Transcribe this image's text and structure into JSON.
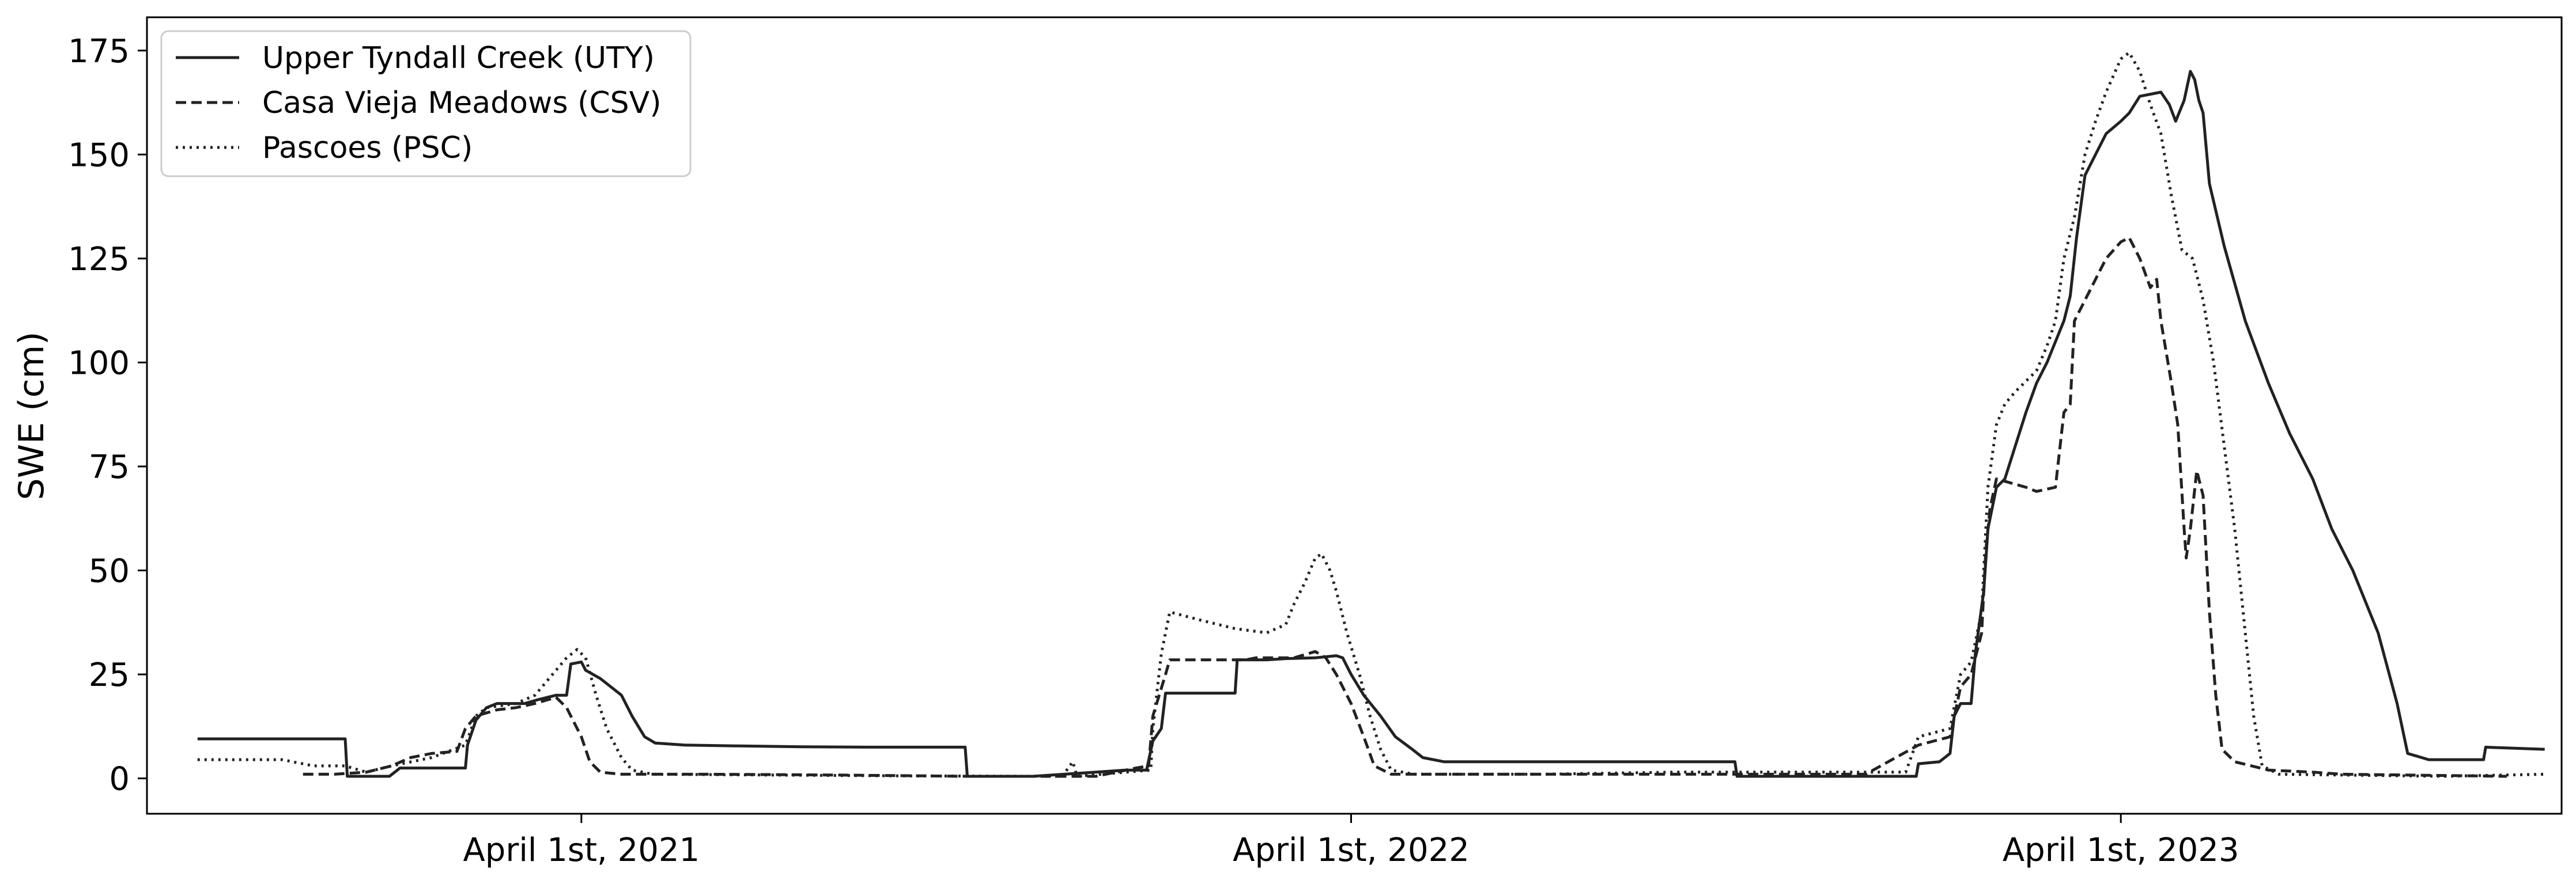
{
  "chart_data": {
    "type": "line",
    "title": "",
    "xlabel": "",
    "ylabel": "SWE (cm)",
    "xlim": [
      "2020-09-07",
      "2023-10-27"
    ],
    "ylim": [
      -8.5,
      183
    ],
    "yticks": [
      0,
      25,
      50,
      75,
      100,
      125,
      150,
      175
    ],
    "xticks": [
      {
        "date": "2021-04-01",
        "label": "April 1st, 2021"
      },
      {
        "date": "2022-04-01",
        "label": "April 1st, 2022"
      },
      {
        "date": "2023-04-01",
        "label": "April 1st, 2023"
      }
    ],
    "grid": false,
    "legend": "top-left",
    "series": [
      {
        "name": "Upper Tyndall Creek (UTY)",
        "style": "solid",
        "color": "#222222",
        "points": [
          [
            "2020-10-01",
            9.5
          ],
          [
            "2020-12-10",
            9.5
          ],
          [
            "2020-12-11",
            0.5
          ],
          [
            "2020-12-31",
            0.5
          ],
          [
            "2021-01-05",
            2.5
          ],
          [
            "2021-01-15",
            2.5
          ],
          [
            "2021-01-16",
            2.5
          ],
          [
            "2021-02-05",
            2.5
          ],
          [
            "2021-02-06",
            8
          ],
          [
            "2021-02-10",
            14
          ],
          [
            "2021-02-15",
            17
          ],
          [
            "2021-02-20",
            18
          ],
          [
            "2021-03-05",
            18
          ],
          [
            "2021-03-12",
            19
          ],
          [
            "2021-03-20",
            20
          ],
          [
            "2021-03-25",
            20
          ],
          [
            "2021-03-27",
            27.5
          ],
          [
            "2021-04-01",
            28
          ],
          [
            "2021-04-03",
            26
          ],
          [
            "2021-04-10",
            24
          ],
          [
            "2021-04-20",
            20
          ],
          [
            "2021-04-25",
            15
          ],
          [
            "2021-05-01",
            10
          ],
          [
            "2021-05-06",
            8.5
          ],
          [
            "2021-05-20",
            8
          ],
          [
            "2021-06-15",
            7.8
          ],
          [
            "2021-07-15",
            7.6
          ],
          [
            "2021-08-15",
            7.5
          ],
          [
            "2021-09-30",
            7.5
          ],
          [
            "2021-10-01",
            0.5
          ],
          [
            "2021-11-01",
            0.5
          ],
          [
            "2021-12-01",
            1.5
          ],
          [
            "2021-12-15",
            2
          ],
          [
            "2021-12-25",
            2
          ],
          [
            "2021-12-28",
            9
          ],
          [
            "2022-01-01",
            12
          ],
          [
            "2022-01-03",
            20.5
          ],
          [
            "2022-01-20",
            20.5
          ],
          [
            "2022-02-05",
            20.5
          ],
          [
            "2022-02-06",
            28.5
          ],
          [
            "2022-02-20",
            28.5
          ],
          [
            "2022-03-01",
            28.8
          ],
          [
            "2022-03-15",
            29
          ],
          [
            "2022-03-25",
            29.5
          ],
          [
            "2022-03-28",
            29
          ],
          [
            "2022-04-01",
            25
          ],
          [
            "2022-04-07",
            20
          ],
          [
            "2022-04-15",
            15
          ],
          [
            "2022-04-22",
            10
          ],
          [
            "2022-04-30",
            7
          ],
          [
            "2022-05-05",
            5
          ],
          [
            "2022-05-15",
            4
          ],
          [
            "2022-06-15",
            4
          ],
          [
            "2022-08-15",
            4
          ],
          [
            "2022-09-30",
            4
          ],
          [
            "2022-10-01",
            0.5
          ],
          [
            "2022-12-25",
            0.5
          ],
          [
            "2022-12-26",
            3.5
          ],
          [
            "2023-01-05",
            4
          ],
          [
            "2023-01-10",
            6
          ],
          [
            "2023-01-12",
            15
          ],
          [
            "2023-01-15",
            18
          ],
          [
            "2023-01-20",
            18
          ],
          [
            "2023-01-22",
            30
          ],
          [
            "2023-01-26",
            45
          ],
          [
            "2023-01-28",
            60
          ],
          [
            "2023-02-01",
            70
          ],
          [
            "2023-02-05",
            72
          ],
          [
            "2023-02-10",
            80
          ],
          [
            "2023-02-15",
            88
          ],
          [
            "2023-02-20",
            95
          ],
          [
            "2023-02-25",
            100
          ],
          [
            "2023-03-01",
            105
          ],
          [
            "2023-03-05",
            110
          ],
          [
            "2023-03-08",
            116
          ],
          [
            "2023-03-11",
            130
          ],
          [
            "2023-03-15",
            145
          ],
          [
            "2023-03-20",
            150
          ],
          [
            "2023-03-25",
            155
          ],
          [
            "2023-04-01",
            158
          ],
          [
            "2023-04-05",
            160
          ],
          [
            "2023-04-10",
            164
          ],
          [
            "2023-04-20",
            165
          ],
          [
            "2023-04-24",
            162
          ],
          [
            "2023-04-27",
            158
          ],
          [
            "2023-05-01",
            163
          ],
          [
            "2023-05-04",
            170
          ],
          [
            "2023-05-06",
            168
          ],
          [
            "2023-05-08",
            163
          ],
          [
            "2023-05-10",
            160
          ],
          [
            "2023-05-13",
            143
          ],
          [
            "2023-05-20",
            128
          ],
          [
            "2023-05-30",
            110
          ],
          [
            "2023-06-10",
            95
          ],
          [
            "2023-06-20",
            83
          ],
          [
            "2023-07-01",
            72
          ],
          [
            "2023-07-10",
            60
          ],
          [
            "2023-07-20",
            50
          ],
          [
            "2023-08-01",
            35
          ],
          [
            "2023-08-10",
            18
          ],
          [
            "2023-08-15",
            6
          ],
          [
            "2023-08-25",
            4.5
          ],
          [
            "2023-09-20",
            4.5
          ],
          [
            "2023-09-21",
            7.5
          ],
          [
            "2023-10-19",
            7
          ]
        ]
      },
      {
        "name": "Casa Vieja Meadows (CSV)",
        "style": "dashed",
        "color": "#222222",
        "points": [
          [
            "2020-11-20",
            1
          ],
          [
            "2020-12-05",
            1
          ],
          [
            "2020-12-20",
            1.5
          ],
          [
            "2021-01-01",
            3
          ],
          [
            "2021-01-10",
            5
          ],
          [
            "2021-01-20",
            6
          ],
          [
            "2021-02-01",
            6.5
          ],
          [
            "2021-02-05",
            12
          ],
          [
            "2021-02-10",
            15
          ],
          [
            "2021-02-20",
            16.5
          ],
          [
            "2021-03-01",
            17
          ],
          [
            "2021-03-10",
            18
          ],
          [
            "2021-03-20",
            19.5
          ],
          [
            "2021-03-25",
            17
          ],
          [
            "2021-04-01",
            10
          ],
          [
            "2021-04-05",
            4
          ],
          [
            "2021-04-10",
            1.5
          ],
          [
            "2021-04-20",
            1
          ],
          [
            "2021-06-01",
            1
          ],
          [
            "2021-08-01",
            0.8
          ],
          [
            "2021-10-01",
            0.5
          ],
          [
            "2021-12-01",
            0.5
          ],
          [
            "2021-12-20",
            2.5
          ],
          [
            "2021-12-26",
            3
          ],
          [
            "2021-12-28",
            15
          ],
          [
            "2022-01-03",
            25
          ],
          [
            "2022-01-05",
            28.5
          ],
          [
            "2022-02-10",
            28.5
          ],
          [
            "2022-02-15",
            29
          ],
          [
            "2022-03-05",
            29
          ],
          [
            "2022-03-15",
            30.5
          ],
          [
            "2022-03-20",
            29
          ],
          [
            "2022-03-25",
            25
          ],
          [
            "2022-04-01",
            18
          ],
          [
            "2022-04-07",
            10
          ],
          [
            "2022-04-12",
            3
          ],
          [
            "2022-04-20",
            1
          ],
          [
            "2022-06-01",
            1
          ],
          [
            "2022-09-01",
            1
          ],
          [
            "2022-12-01",
            1
          ],
          [
            "2022-12-26",
            8
          ],
          [
            "2023-01-10",
            10
          ],
          [
            "2023-01-15",
            22
          ],
          [
            "2023-01-20",
            25
          ],
          [
            "2023-01-25",
            35
          ],
          [
            "2023-01-27",
            55
          ],
          [
            "2023-01-29",
            65
          ],
          [
            "2023-02-01",
            72
          ],
          [
            "2023-02-15",
            70
          ],
          [
            "2023-02-20",
            69
          ],
          [
            "2023-03-01",
            70
          ],
          [
            "2023-03-05",
            88
          ],
          [
            "2023-03-08",
            90
          ],
          [
            "2023-03-10",
            110
          ],
          [
            "2023-03-15",
            115
          ],
          [
            "2023-03-20",
            120
          ],
          [
            "2023-03-25",
            125
          ],
          [
            "2023-04-01",
            129
          ],
          [
            "2023-04-05",
            130
          ],
          [
            "2023-04-10",
            125
          ],
          [
            "2023-04-15",
            118
          ],
          [
            "2023-04-18",
            120
          ],
          [
            "2023-04-20",
            110
          ],
          [
            "2023-04-25",
            95
          ],
          [
            "2023-04-28",
            85
          ],
          [
            "2023-05-01",
            60
          ],
          [
            "2023-05-02",
            53
          ],
          [
            "2023-05-04",
            60
          ],
          [
            "2023-05-07",
            74
          ],
          [
            "2023-05-10",
            68
          ],
          [
            "2023-05-13",
            40
          ],
          [
            "2023-05-16",
            20
          ],
          [
            "2023-05-19",
            7
          ],
          [
            "2023-05-25",
            4
          ],
          [
            "2023-06-10",
            2
          ],
          [
            "2023-07-01",
            1.5
          ],
          [
            "2023-07-15",
            1
          ],
          [
            "2023-10-01",
            0.5
          ]
        ]
      },
      {
        "name": "Pascoes (PSC)",
        "style": "dotted",
        "color": "#222222",
        "points": [
          [
            "2020-10-01",
            4.5
          ],
          [
            "2020-11-10",
            4.5
          ],
          [
            "2020-11-25",
            3
          ],
          [
            "2020-12-10",
            3
          ],
          [
            "2020-12-20",
            1.5
          ],
          [
            "2021-01-01",
            3
          ],
          [
            "2021-01-20",
            5
          ],
          [
            "2021-02-05",
            8
          ],
          [
            "2021-02-10",
            15
          ],
          [
            "2021-02-15",
            17
          ],
          [
            "2021-03-01",
            18
          ],
          [
            "2021-03-10",
            20
          ],
          [
            "2021-03-20",
            26
          ],
          [
            "2021-03-25",
            29
          ],
          [
            "2021-03-30",
            31
          ],
          [
            "2021-04-03",
            29
          ],
          [
            "2021-04-08",
            20
          ],
          [
            "2021-04-13",
            12
          ],
          [
            "2021-04-20",
            5
          ],
          [
            "2021-04-25",
            2
          ],
          [
            "2021-05-05",
            1
          ],
          [
            "2021-07-01",
            0.8
          ],
          [
            "2021-09-01",
            0.6
          ],
          [
            "2021-11-15",
            0.5
          ],
          [
            "2021-11-20",
            4
          ],
          [
            "2021-11-22",
            0.5
          ],
          [
            "2021-12-27",
            2
          ],
          [
            "2021-12-28",
            12
          ],
          [
            "2022-01-01",
            30
          ],
          [
            "2022-01-05",
            40
          ],
          [
            "2022-01-20",
            38
          ],
          [
            "2022-02-05",
            36
          ],
          [
            "2022-02-20",
            35
          ],
          [
            "2022-03-01",
            37
          ],
          [
            "2022-03-05",
            42
          ],
          [
            "2022-03-10",
            47
          ],
          [
            "2022-03-15",
            53
          ],
          [
            "2022-03-18",
            54
          ],
          [
            "2022-03-22",
            50
          ],
          [
            "2022-03-25",
            45
          ],
          [
            "2022-03-30",
            35
          ],
          [
            "2022-04-05",
            25
          ],
          [
            "2022-04-10",
            15
          ],
          [
            "2022-04-15",
            7
          ],
          [
            "2022-04-20",
            2
          ],
          [
            "2022-05-01",
            1
          ],
          [
            "2022-07-01",
            1
          ],
          [
            "2022-09-01",
            1.5
          ],
          [
            "2022-12-20",
            1.5
          ],
          [
            "2022-12-26",
            10
          ],
          [
            "2023-01-10",
            12
          ],
          [
            "2023-01-15",
            25
          ],
          [
            "2023-01-20",
            28
          ],
          [
            "2023-01-25",
            40
          ],
          [
            "2023-01-28",
            70
          ],
          [
            "2023-02-01",
            85
          ],
          [
            "2023-02-05",
            90
          ],
          [
            "2023-02-10",
            93
          ],
          [
            "2023-02-20",
            98
          ],
          [
            "2023-02-25",
            104
          ],
          [
            "2023-03-01",
            110
          ],
          [
            "2023-03-05",
            125
          ],
          [
            "2023-03-10",
            135
          ],
          [
            "2023-03-15",
            150
          ],
          [
            "2023-03-20",
            158
          ],
          [
            "2023-03-25",
            165
          ],
          [
            "2023-04-01",
            173
          ],
          [
            "2023-04-05",
            174.5
          ],
          [
            "2023-04-10",
            170
          ],
          [
            "2023-04-15",
            162
          ],
          [
            "2023-04-20",
            155
          ],
          [
            "2023-04-25",
            140
          ],
          [
            "2023-04-30",
            127
          ],
          [
            "2023-05-05",
            125
          ],
          [
            "2023-05-10",
            115
          ],
          [
            "2023-05-15",
            100
          ],
          [
            "2023-05-20",
            80
          ],
          [
            "2023-05-25",
            60
          ],
          [
            "2023-05-30",
            35
          ],
          [
            "2023-06-03",
            15
          ],
          [
            "2023-06-07",
            3
          ],
          [
            "2023-06-15",
            1
          ],
          [
            "2023-07-15",
            0.8
          ],
          [
            "2023-09-01",
            0.5
          ],
          [
            "2023-10-19",
            1
          ]
        ]
      }
    ]
  }
}
